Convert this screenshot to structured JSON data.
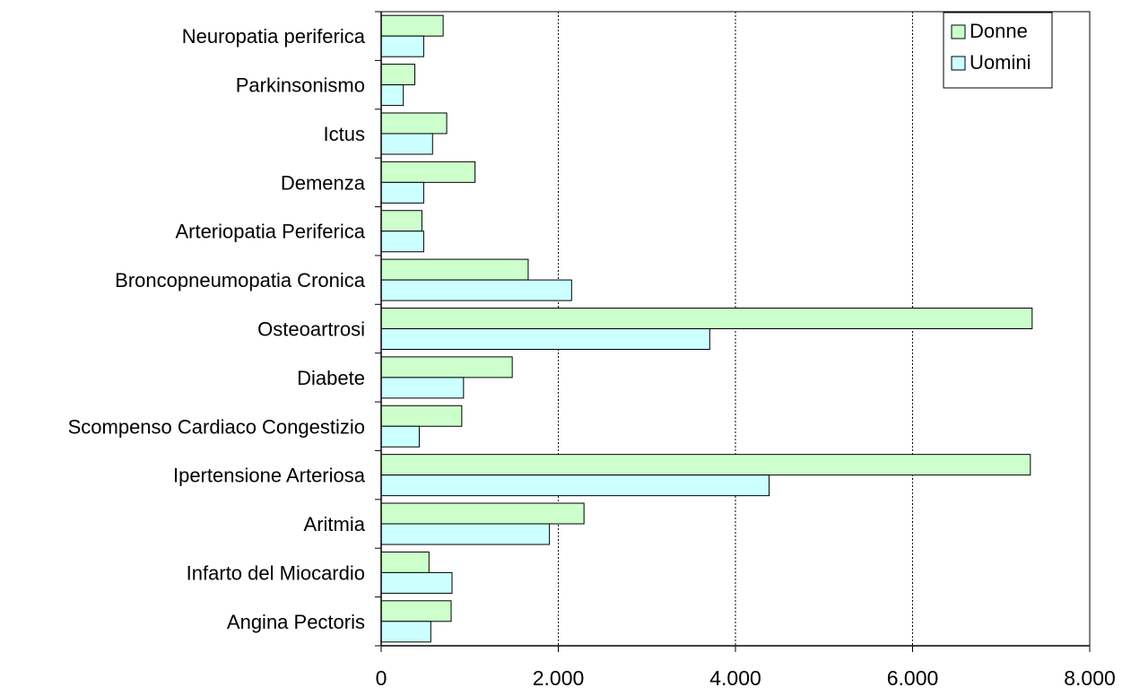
{
  "chart_data": {
    "type": "bar",
    "orientation": "horizontal",
    "title": "",
    "xlabel": "",
    "ylabel": "",
    "xlim": [
      0,
      8000
    ],
    "x_ticks": [
      0,
      2000,
      4000,
      6000,
      8000
    ],
    "x_tick_labels": [
      "0",
      "2.000",
      "4.000",
      "6.000",
      "8.000"
    ],
    "grid": "vertical dotted",
    "legend_position": "top-right",
    "categories": [
      "Neuropatia periferica",
      "Parkinsonismo",
      "Ictus",
      "Demenza",
      "Arteriopatia Periferica",
      "Broncopneumopatia Cronica",
      "Osteoartrosi",
      "Diabete",
      "Scompenso Cardiaco Congestizio",
      "Ipertensione Arteriosa",
      "Aritmia",
      "Infarto del Miocardio",
      "Angina Pectoris"
    ],
    "series": [
      {
        "name": "Donne",
        "color": "#ccffcc",
        "values": [
          700,
          380,
          740,
          1060,
          460,
          1660,
          7350,
          1480,
          910,
          7330,
          2290,
          540,
          790
        ]
      },
      {
        "name": "Uomini",
        "color": "#ccffff",
        "values": [
          480,
          250,
          580,
          480,
          480,
          2150,
          3710,
          930,
          430,
          4380,
          1900,
          800,
          560
        ]
      }
    ]
  }
}
